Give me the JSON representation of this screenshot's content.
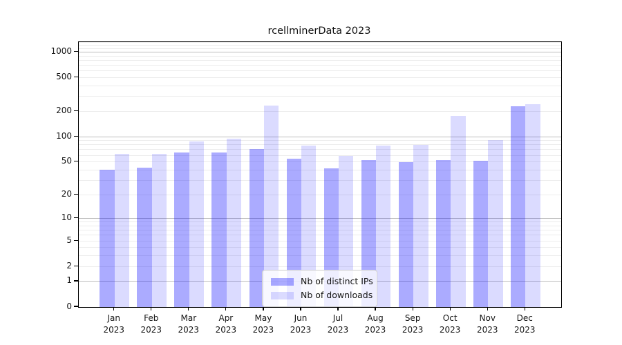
{
  "title": "rcellminerData 2023",
  "chart_data": {
    "type": "bar",
    "title": "rcellminerData 2023",
    "categories": [
      "Jan",
      "Feb",
      "Mar",
      "Apr",
      "May",
      "Jun",
      "Jul",
      "Aug",
      "Sep",
      "Oct",
      "Nov",
      "Dec"
    ],
    "year_label": "2023",
    "series": [
      {
        "name": "Nb of distinct IPs",
        "color": "#0000ff54",
        "values": [
          40,
          43,
          65,
          65,
          71,
          55,
          42,
          53,
          50,
          53,
          52,
          228
        ]
      },
      {
        "name": "Nb of downloads",
        "color": "#0000ff24",
        "values": [
          62,
          62,
          87,
          95,
          235,
          78,
          59,
          78,
          80,
          178,
          91,
          245
        ]
      }
    ],
    "yscale": "log1p",
    "y_axis": {
      "ticks": [
        1000,
        500,
        200,
        100,
        50,
        20,
        10,
        5,
        2,
        1,
        0
      ],
      "top": 1310,
      "major_grid": [
        1,
        10,
        100,
        1000
      ],
      "minor_grid": [
        2,
        3,
        4,
        5,
        6,
        7,
        8,
        9,
        20,
        30,
        40,
        50,
        60,
        70,
        80,
        90,
        200,
        300,
        400,
        500,
        600,
        700,
        800,
        900,
        1100,
        1200,
        1300
      ]
    },
    "legend_position": "bottom-center",
    "grid": true
  },
  "colors": {
    "bar_distinct_ips": "#a8a8fc",
    "bar_downloads": "#dcdcfb",
    "major_grid": "#bbbbbb",
    "minor_grid": "#ececec",
    "axis": "#000000",
    "legend_border": "#cccccc"
  }
}
